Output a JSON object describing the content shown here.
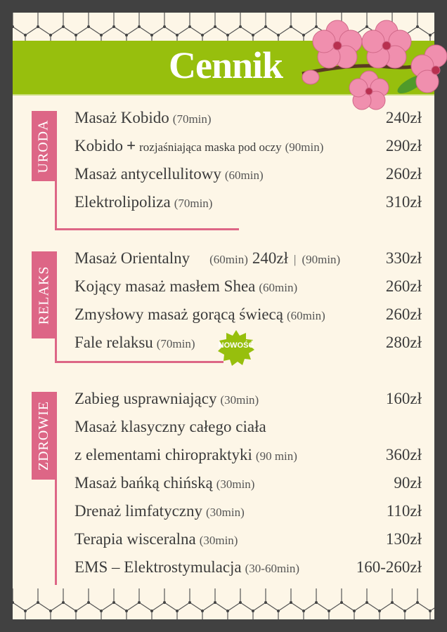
{
  "title": "Cennik",
  "sections": [
    {
      "label": "URODA",
      "items": [
        {
          "name": "Masaż Kobido",
          "duration": "(70min)",
          "price": "240zł"
        },
        {
          "name": "Kobido",
          "plus": "+",
          "sub": "rozjaśniająca maska pod oczy",
          "duration": "(90min)",
          "price": "290zł"
        },
        {
          "name": "Masaż antycellulitowy",
          "duration": "(60min)",
          "price": "260zł"
        },
        {
          "name": "Elektrolipoliza",
          "duration": "(70min)",
          "price": "310zł"
        }
      ]
    },
    {
      "label": "RELAKS",
      "items": [
        {
          "name": "Masaż Orientalny",
          "duration": "(60min)",
          "price_a": "240zł",
          "separator": "|",
          "duration_b": "(90min)",
          "price": "330zł"
        },
        {
          "name": "Kojący masaż masłem Shea",
          "duration": "(60min)",
          "price": "260zł"
        },
        {
          "name": "Zmysłowy masaż gorącą świecą",
          "duration": "(60min)",
          "price": "260zł"
        },
        {
          "name": "Fale relaksu",
          "duration": "(70min)",
          "badge": "NOWOŚĆ",
          "price": "280zł"
        }
      ]
    },
    {
      "label": "ZDROWIE",
      "items": [
        {
          "name": "Zabieg usprawniający",
          "duration": "(30min)",
          "price": "160zł"
        },
        {
          "name": "Masaż klasyczny całego ciała"
        },
        {
          "name": "z elementami chiropraktyki",
          "duration": "(90 min)",
          "price": "360zł"
        },
        {
          "name": "Masaż bańką chińską",
          "duration": "(30min)",
          "price": "90zł"
        },
        {
          "name": "Drenaż limfatyczny",
          "duration": "(30min)",
          "price": "110zł"
        },
        {
          "name": "Terapia wisceralna",
          "duration": "(30min)",
          "price": "130zł"
        },
        {
          "name": "EMS – Elektrostymulacja",
          "duration": "(30-60min)",
          "price": "160-260zł"
        }
      ]
    }
  ],
  "colors": {
    "frame": "#414141",
    "paper": "#fdf6e7",
    "accent_green": "#97bf0d",
    "accent_pink": "#dd6686",
    "text": "#3b3b3b"
  },
  "decor": {
    "pattern": "honeycomb",
    "illustration": "cherry-blossom-branch"
  }
}
